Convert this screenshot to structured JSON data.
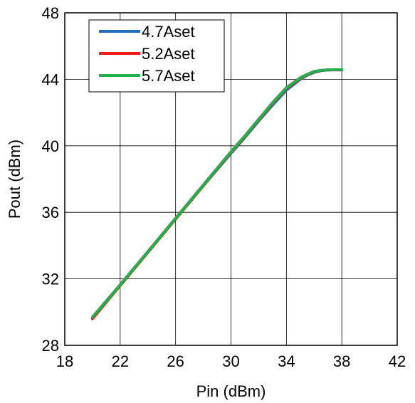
{
  "chart_data": {
    "type": "line",
    "xlabel": "Pin (dBm)",
    "ylabel": "Pout (dBm)",
    "xlim": [
      18,
      42
    ],
    "ylim": [
      28,
      48
    ],
    "xticks": [
      18,
      22,
      26,
      30,
      34,
      38,
      42
    ],
    "yticks": [
      28,
      32,
      36,
      40,
      44,
      48
    ],
    "grid": true,
    "legend_position": "top-left",
    "series": [
      {
        "name": "4.7Aset",
        "color": "#1f6fbf",
        "x": [
          20,
          22,
          24,
          26,
          28,
          30,
          31,
          32,
          33,
          34,
          35,
          35.5,
          36,
          36.5,
          37,
          37.5,
          38
        ],
        "y": [
          29.65,
          31.6,
          33.6,
          35.6,
          37.6,
          39.55,
          40.5,
          41.5,
          42.45,
          43.35,
          44.0,
          44.25,
          44.42,
          44.52,
          44.56,
          44.57,
          44.57
        ]
      },
      {
        "name": "5.2Aset",
        "color": "#ee1c1c",
        "x": [
          20,
          22,
          24,
          26,
          28,
          30,
          31,
          32,
          33,
          34,
          35,
          35.5,
          36,
          36.5,
          37,
          37.5,
          38
        ],
        "y": [
          29.6,
          31.6,
          33.6,
          35.6,
          37.6,
          39.6,
          40.55,
          41.55,
          42.55,
          43.45,
          44.05,
          44.28,
          44.45,
          44.53,
          44.57,
          44.57,
          44.57
        ]
      },
      {
        "name": "5.7Aset",
        "color": "#22b14c",
        "x": [
          20,
          22,
          24,
          26,
          28,
          30,
          31,
          32,
          33,
          34,
          35,
          35.5,
          36,
          36.5,
          37,
          37.5,
          38
        ],
        "y": [
          29.7,
          31.65,
          33.65,
          35.65,
          37.65,
          39.65,
          40.6,
          41.6,
          42.6,
          43.5,
          44.1,
          44.3,
          44.47,
          44.54,
          44.57,
          44.58,
          44.58
        ]
      }
    ]
  }
}
